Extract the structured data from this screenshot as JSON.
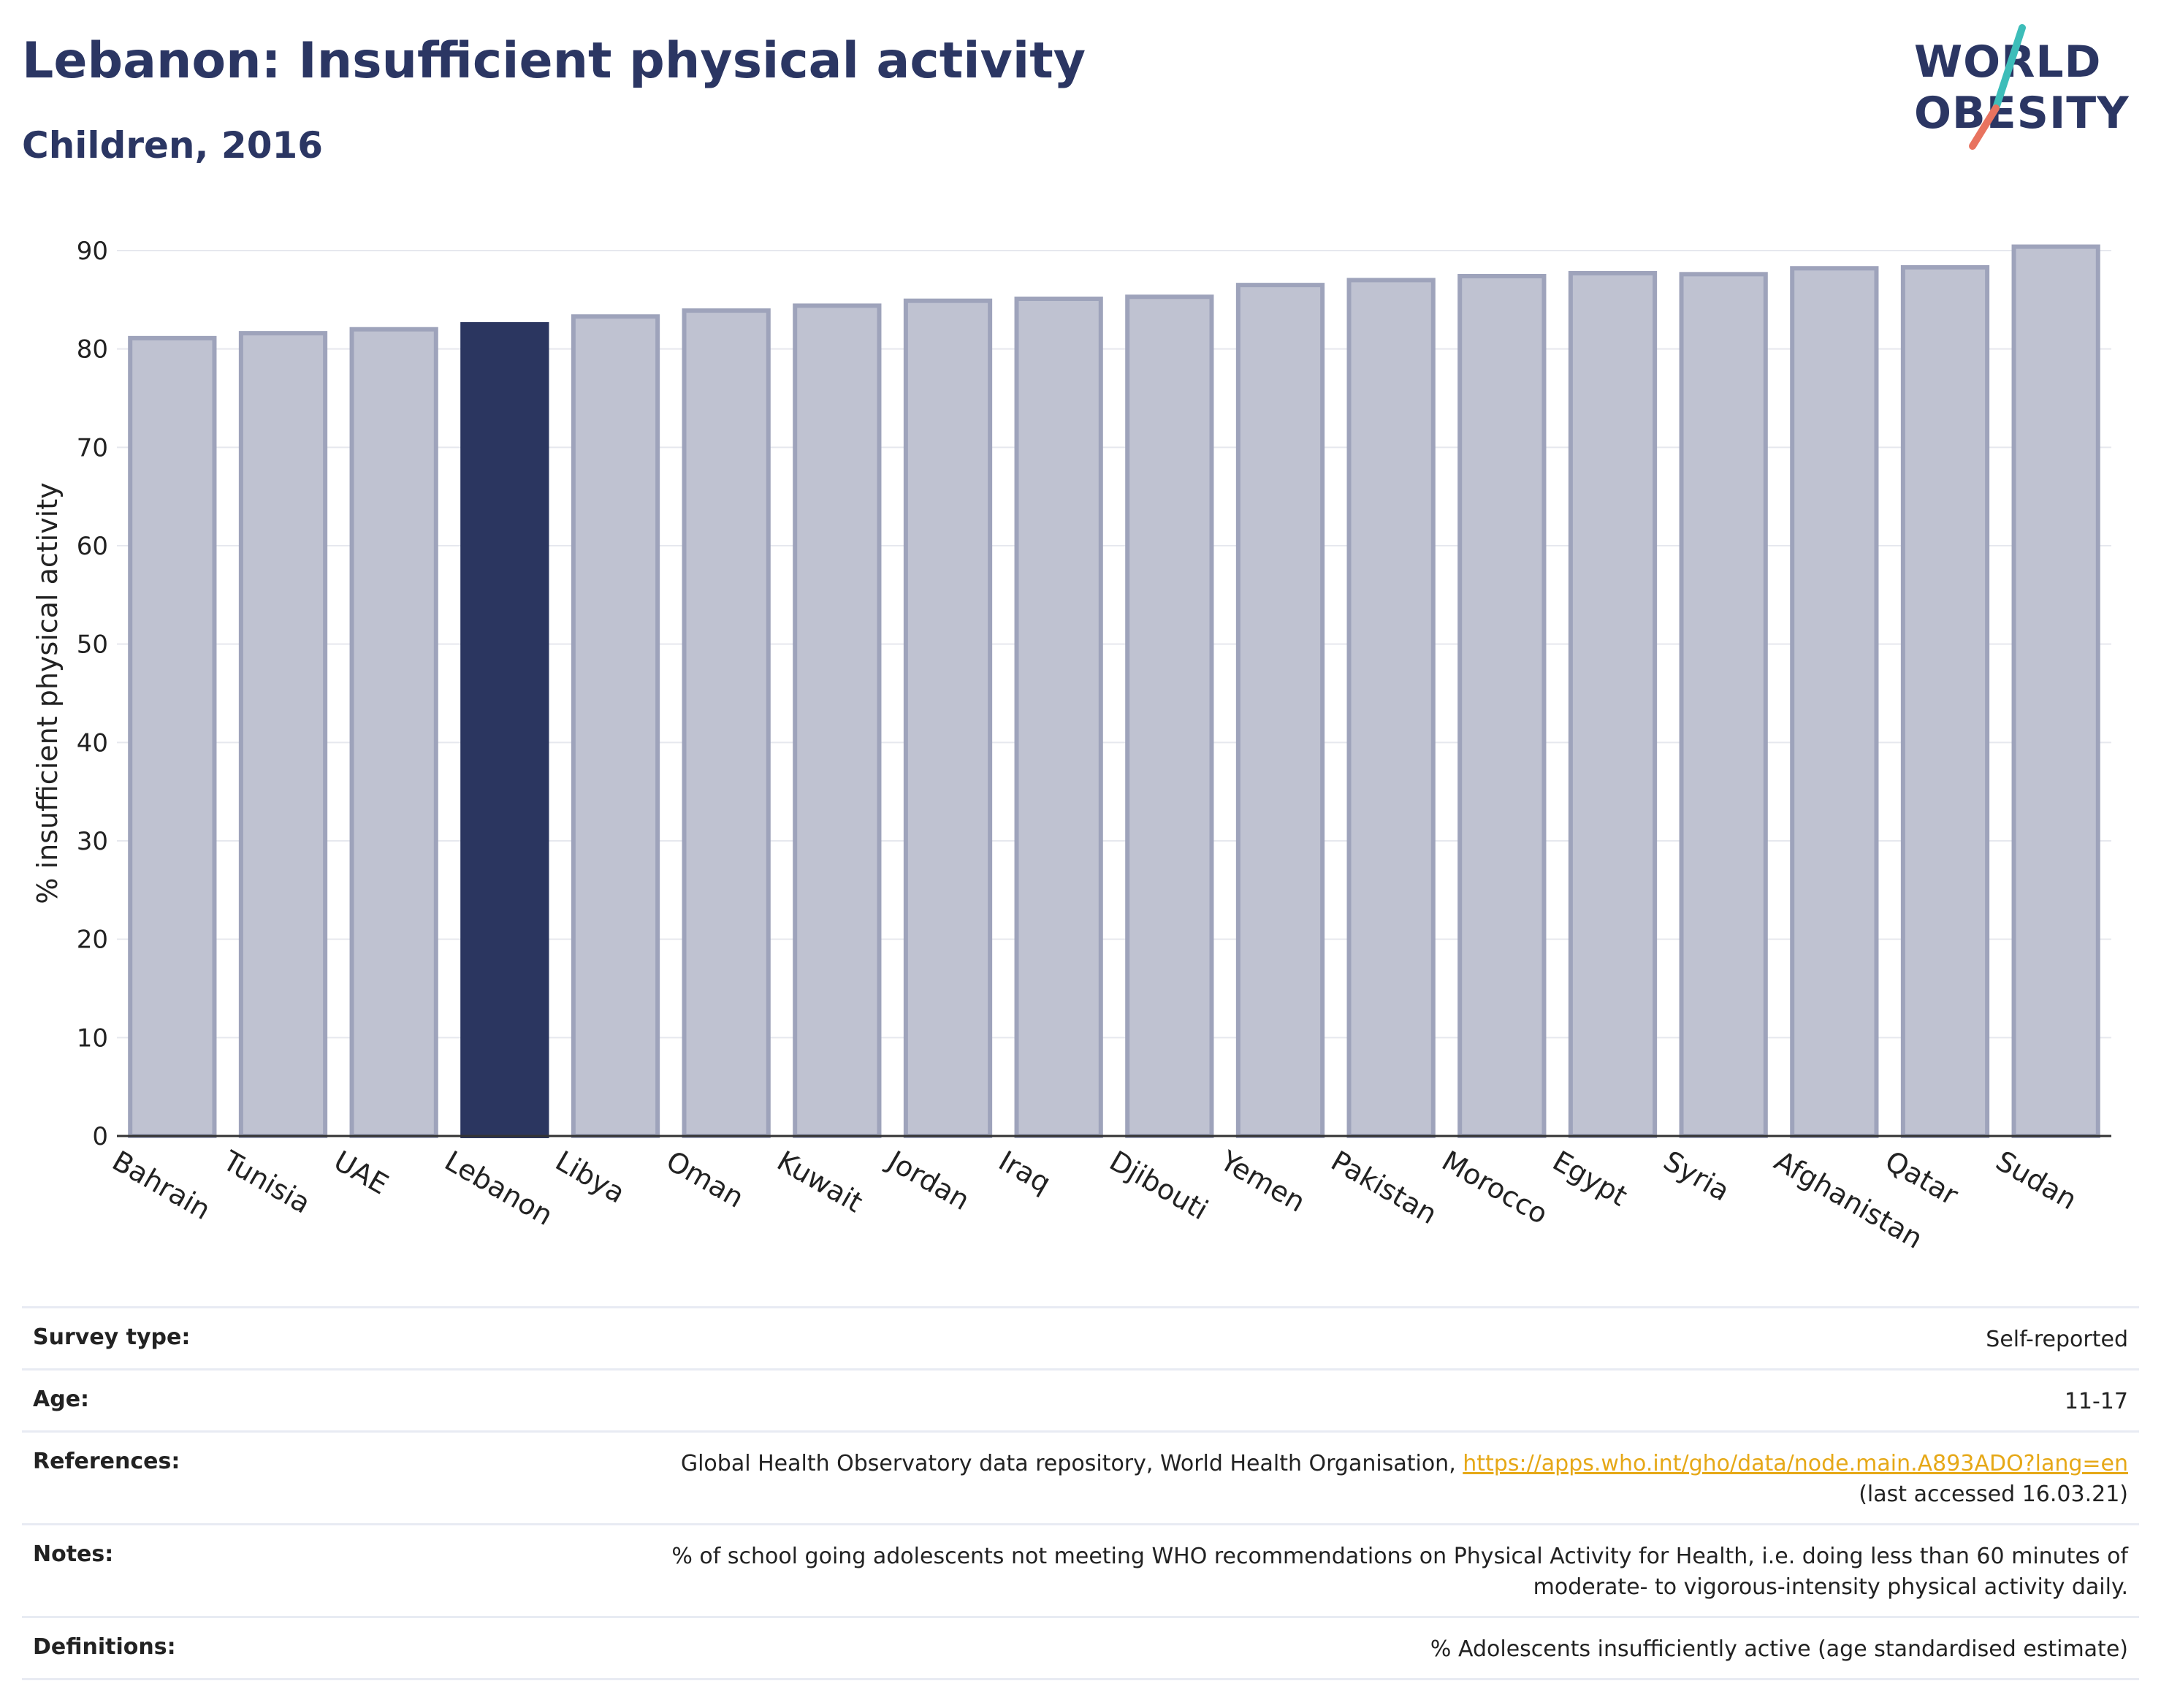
{
  "header": {
    "title": "Lebanon: Insufficient physical activity",
    "subtitle": "Children, 2016"
  },
  "logo": {
    "line1": "WORLD",
    "line2": "OBESITY",
    "accent_teal": "#3dbdb9",
    "accent_coral": "#e8735f"
  },
  "colors": {
    "bar": "#bfc2d1",
    "bar_border": "#9ea3bb",
    "highlight": "#2b3660",
    "grid": "#e6e8ee",
    "text": "#222222"
  },
  "chart_data": {
    "type": "bar",
    "ylabel": "% insufficient physical activity",
    "ylim": [
      0,
      90
    ],
    "yticks": [
      0,
      10,
      20,
      30,
      40,
      50,
      60,
      70,
      80,
      90
    ],
    "grid": true,
    "highlight": "Lebanon",
    "categories": [
      "Bahrain",
      "Tunisia",
      "UAE",
      "Lebanon",
      "Libya",
      "Oman",
      "Kuwait",
      "Jordan",
      "Iraq",
      "Djibouti",
      "Yemen",
      "Pakistan",
      "Morocco",
      "Egypt",
      "Syria",
      "Afghanistan",
      "Qatar",
      "Sudan"
    ],
    "values": [
      81.1,
      81.6,
      82.0,
      82.5,
      83.3,
      83.9,
      84.4,
      84.9,
      85.1,
      85.3,
      86.5,
      87.0,
      87.4,
      87.7,
      87.6,
      88.2,
      88.3,
      90.4
    ]
  },
  "info": {
    "survey_type": {
      "label": "Survey type:",
      "value": "Self-reported"
    },
    "age": {
      "label": "Age:",
      "value": "11-17"
    },
    "references": {
      "label": "References:",
      "text": "Global Health Observatory data repository, World Health Organisation, ",
      "link": "https://apps.who.int/gho/data/node.main.A893ADO?lang=en",
      "suffix": "(last accessed 16.03.21)"
    },
    "notes": {
      "label": "Notes:",
      "line1": "% of school going adolescents not meeting WHO recommendations on Physical Activity for Health, i.e. doing less than 60 minutes of",
      "line2": "moderate- to vigorous-intensity physical activity daily."
    },
    "definitions": {
      "label": "Definitions:",
      "value": "% Adolescents insufficiently active (age standardised estimate)"
    }
  }
}
